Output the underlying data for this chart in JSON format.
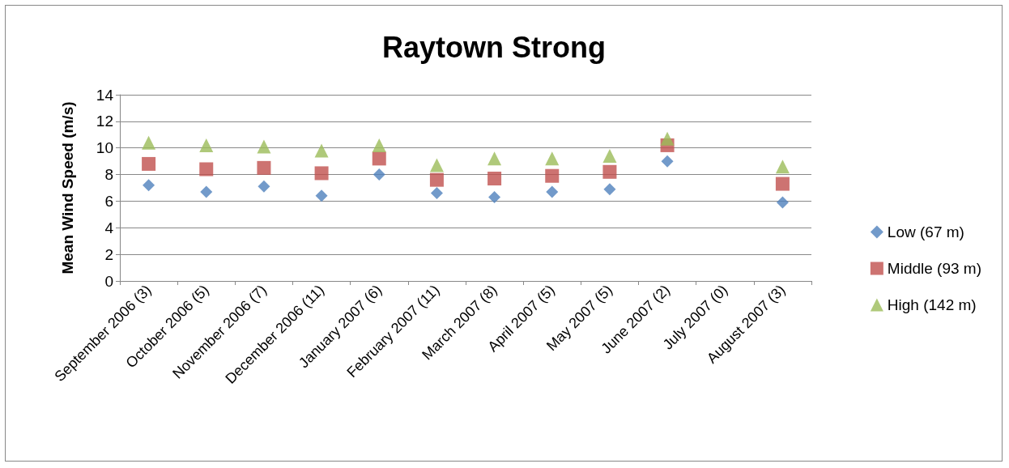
{
  "chart_data": {
    "type": "scatter",
    "title": "Raytown Strong",
    "ylabel": "Mean Wind Speed (m/s)",
    "categories": [
      "September 2006 (3)",
      "October 2006 (5)",
      "November 2006 (7)",
      "December 2006 (11)",
      "January 2007 (6)",
      "February 2007 (11)",
      "March 2007 (8)",
      "April 2007 (5)",
      "May 2007 (5)",
      "June 2007 (2)",
      "July 2007 (0)",
      "August 2007 (3)"
    ],
    "series": [
      {
        "name": "Low (67 m)",
        "color": "#4f81bd",
        "marker": "diamond",
        "values": [
          7.2,
          6.7,
          7.1,
          6.4,
          8.0,
          6.6,
          6.3,
          6.7,
          6.9,
          9.0,
          null,
          5.9
        ]
      },
      {
        "name": "Middle (93 m)",
        "color": "#c0504d",
        "marker": "square",
        "values": [
          8.8,
          8.4,
          8.5,
          8.1,
          9.2,
          7.6,
          7.7,
          7.9,
          8.2,
          10.2,
          null,
          7.3
        ]
      },
      {
        "name": "High (142 m)",
        "color": "#9bbb59",
        "marker": "triangle",
        "values": [
          10.4,
          10.2,
          10.1,
          9.8,
          10.2,
          8.7,
          9.2,
          9.2,
          9.4,
          10.7,
          null,
          8.6
        ]
      }
    ],
    "ylim": [
      0,
      14
    ],
    "yticks": [
      0,
      2,
      4,
      6,
      8,
      10,
      12,
      14
    ],
    "grid": "y",
    "legend": "right"
  }
}
